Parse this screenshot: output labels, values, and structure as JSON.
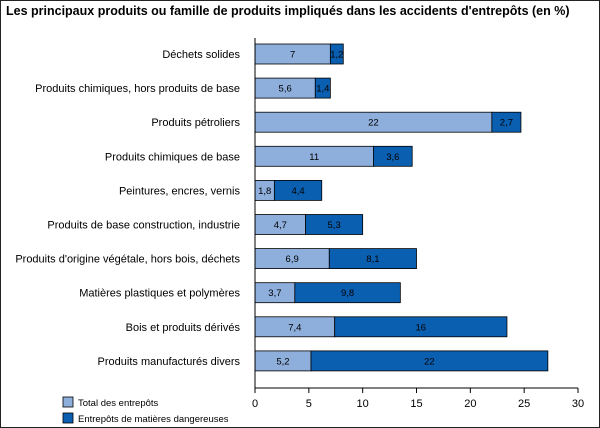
{
  "chart_data": {
    "type": "bar",
    "orientation": "horizontal",
    "stacked": true,
    "title": "Les  principaux produits ou famille de produits impliqués dans les accidents d'entrepôts (en %)",
    "categories": [
      "Déchets solides",
      "Produits chimiques, hors produits de base",
      "Produits pétroliers",
      "Produits chimiques de base",
      "Peintures, encres, vernis",
      "Produits de base construction, industrie",
      "Produits d'origine végétale, hors bois, déchets",
      "Matières plastiques et polymères",
      "Bois et produits dérivés",
      "Produits manufacturés divers"
    ],
    "series": [
      {
        "name": "Total des entrepôts",
        "color": "#8eaedc",
        "values": [
          7,
          5.6,
          22,
          11,
          1.8,
          4.7,
          6.9,
          3.7,
          7.4,
          5.2
        ],
        "labels": [
          "7",
          "5,6",
          "22",
          "11",
          "1,8",
          "4,7",
          "6,9",
          "3,7",
          "7,4",
          "5,2"
        ]
      },
      {
        "name": "Entrepôts de matières dangereuses",
        "color": "#0b5fb0",
        "values": [
          1.2,
          1.4,
          2.7,
          3.6,
          4.4,
          5.3,
          8.1,
          9.8,
          16,
          22
        ],
        "labels": [
          "1,2",
          "1,4",
          "2,7",
          "3,6",
          "4,4",
          "5,3",
          "8,1",
          "9,8",
          "16",
          "22"
        ]
      }
    ],
    "xlim": [
      0,
      30
    ],
    "xticks": [
      0,
      5,
      10,
      15,
      20,
      25,
      30
    ],
    "xtick_labels": [
      "0",
      "5",
      "10",
      "15",
      "20",
      "25",
      "30"
    ],
    "grid": false,
    "legend_position": "bottom-left"
  }
}
